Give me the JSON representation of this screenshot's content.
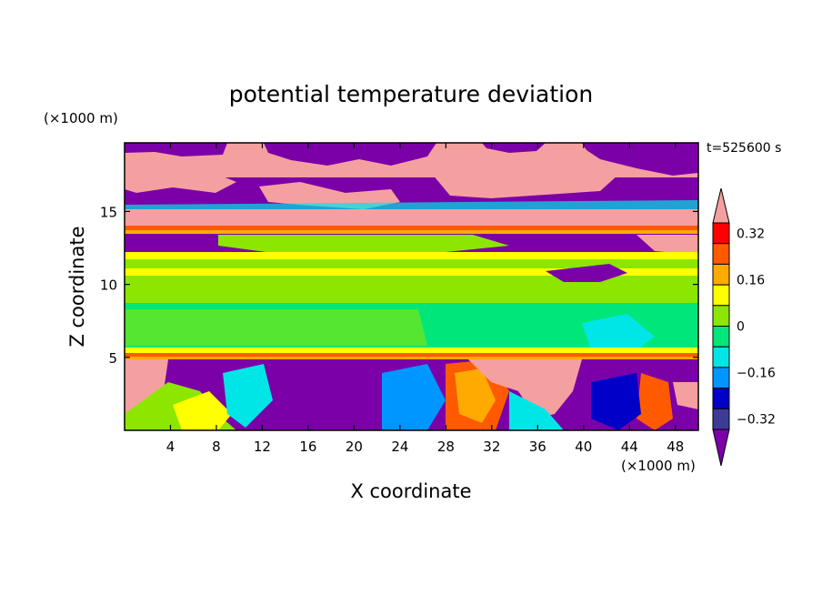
{
  "chart_data": {
    "type": "heatmap",
    "title": "potential temperature deviation",
    "xlabel": "X coordinate",
    "ylabel": "Z coordinate",
    "x_unit": "(×1000 m)",
    "y_unit": "(×1000 m)",
    "time_label": "t=525600 s",
    "xlim": [
      0,
      50
    ],
    "ylim": [
      0,
      19.7
    ],
    "x_ticks": [
      4,
      8,
      12,
      16,
      20,
      24,
      28,
      32,
      36,
      40,
      44,
      48
    ],
    "y_ticks": [
      5,
      10,
      15
    ],
    "colorbar": {
      "labels": [
        "0.32",
        "0.16",
        "0",
        "-0.16",
        "-0.32"
      ],
      "label_values": [
        0.32,
        0.16,
        0,
        -0.16,
        -0.32
      ],
      "levels": [
        -0.4,
        -0.32,
        -0.24,
        -0.16,
        -0.08,
        0,
        0.08,
        0.16,
        0.24,
        0.32,
        0.4
      ],
      "colors": [
        "#7b00a8",
        "#3c3c96",
        "#0000c8",
        "#0096ff",
        "#00e6e6",
        "#00e67a",
        "#8ce600",
        "#ffff00",
        "#ffaa00",
        "#ff5a00",
        "#ff0000",
        "#f5a0a0"
      ],
      "extend": "both"
    },
    "bands": [
      {
        "z_range": [
          17.5,
          19.7
        ],
        "description_level": 0.45
      },
      {
        "z_range": [
          15.2,
          17.5
        ],
        "description_level": -0.45
      },
      {
        "z_range": [
          14.0,
          15.2
        ],
        "description_level": 0.45
      },
      {
        "z_range": [
          13.6,
          14.0
        ],
        "description_level": 0.36
      },
      {
        "z_range": [
          12.8,
          13.6
        ],
        "description_level": -0.45
      },
      {
        "z_range": [
          10.5,
          12.8
        ],
        "description_level": 0.12
      },
      {
        "z_range": [
          5.6,
          10.5
        ],
        "description_level": 0.04
      },
      {
        "z_range": [
          5.0,
          5.6
        ],
        "description_level": 0.3
      },
      {
        "z_range": [
          0,
          5.0
        ],
        "description_level": -0.4
      }
    ]
  }
}
